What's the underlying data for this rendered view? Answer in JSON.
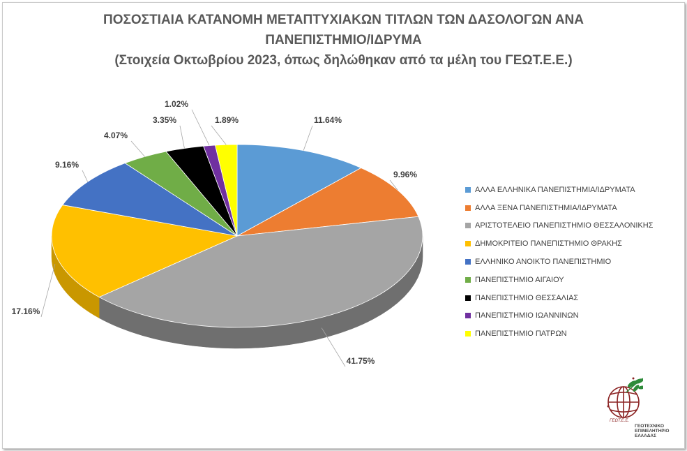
{
  "chart_data": {
    "type": "pie",
    "title_lines": [
      "ΠΟΣΟΣΤΙΑΙΑ ΚΑΤΑΝΟΜΗ ΜΕΤΑΠΤΥΧΙΑΚΩΝ ΤΙΤΛΩΝ ΤΩΝ ΔΑΣΟΛΟΓΩΝ ΑΝΑ",
      "ΠΑΝΕΠΙΣΤΗΜΙΟ/ΙΔΡΥΜΑ",
      "(Στοιχεία Οκτωβρίου 2023, όπως δηλώθηκαν από τα μέλη του ΓΕΩΤ.Ε.Ε.)"
    ],
    "legend_position": "right",
    "slices": [
      {
        "label": "ΑΛΛΑ ΕΛΛΗΝΙΚΑ ΠΑΝΕΠΙΣΤΗΜΙΑ/ΙΔΡΥΜΑΤΑ",
        "value": 11.64,
        "display": "11.64%",
        "color": "#5B9BD5",
        "side": "#3F78AE"
      },
      {
        "label": "ΑΛΛΑ ΞΕΝΑ ΠΑΝΕΠΙΣΤΗΜΙΑ/ΙΔΡΥΜΑΤΑ",
        "value": 9.96,
        "display": "9.96%",
        "color": "#ED7D31",
        "side": "#B85B1E"
      },
      {
        "label": "ΑΡΙΣΤΟΤΕΛΕΙΟ ΠΑΝΕΠΙΣΤΗΜΙΟ ΘΕΣΣΑΛΟΝΙΚΗΣ",
        "value": 41.75,
        "display": "41.75%",
        "color": "#A5A5A5",
        "side": "#6F6F6F"
      },
      {
        "label": "ΔΗΜΟΚΡΙΤΕΙΟ ΠΑΝΕΠΙΣΤΗΜΙΟ ΘΡΑΚΗΣ",
        "value": 17.16,
        "display": "17.16%",
        "color": "#FFC000",
        "side": "#C99700"
      },
      {
        "label": "ΕΛΛΗΝΙΚΟ ΑΝΟΙΚΤΟ ΠΑΝΕΠΙΣΤΗΜΙΟ",
        "value": 9.16,
        "display": "9.16%",
        "color": "#4472C4",
        "side": "#2E5190"
      },
      {
        "label": "ΠΑΝΕΠΙΣΤΗΜΙΟ ΑΙΓΑΙΟΥ",
        "value": 4.07,
        "display": "4.07%",
        "color": "#70AD47",
        "side": "#4E7D31"
      },
      {
        "label": "ΠΑΝΕΠΙΣΤΗΜΙΟ ΘΕΣΣΑΛΙΑΣ",
        "value": 3.35,
        "display": "3.35%",
        "color": "#000000",
        "side": "#000000"
      },
      {
        "label": "ΠΑΝΕΠΙΣΤΗΜΙΟ ΙΩΑΝΝΙΝΩΝ",
        "value": 1.02,
        "display": "1.02%",
        "color": "#7030A0",
        "side": "#4E1F72"
      },
      {
        "label": "ΠΑΝΕΠΙΣΤΗΜΙΟ ΠΑΤΡΩΝ",
        "value": 1.89,
        "display": "1.89%",
        "color": "#FFFF00",
        "side": "#C8C800"
      }
    ]
  },
  "logo": {
    "icon": "geotee-globe-olive-logo",
    "text_lines": [
      "ΓΕΩΤΕΧΝΙΚΟ",
      "ΕΠΙΜΕΛΗΤΗΡΙΟ",
      "ΕΛΛΑΔΑΣ"
    ],
    "ring_text": "ΓΕΩΤ.Ε.Ε."
  }
}
